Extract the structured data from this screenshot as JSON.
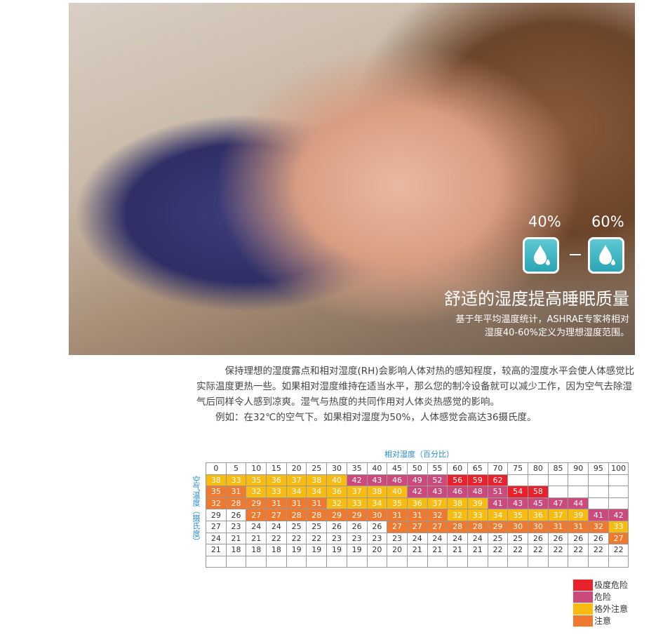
{
  "hero": {
    "badges": [
      "40%",
      "60%"
    ],
    "title": "舒适的湿度提高睡眠质量",
    "subtitle": [
      "基于年平均温度统计，ASHRAE专家将相对",
      "湿度40-60%定义为理想湿度范围。"
    ]
  },
  "body": {
    "paragraphs": [
      "保持理想的湿度露点和相对湿度(RH)会影响人体对热的感知程度，较高的湿度水平会使人体感觉比实际温度更热一些。如果相对湿度维持在适当水平，那么您的制冷设备就可以减少工作，因为空气去除湿气后同样令人感到凉爽。湿气与热度的共同作用对人体炎热感觉的影响。",
      "例如：在32℃的空气下。如果相对湿度为50%，人体感觉会高达36摄氏度。"
    ]
  },
  "table": {
    "caption": "相对湿度（百分比）",
    "row_label": "空气温度（摄氏度）",
    "header": [
      0,
      5,
      10,
      15,
      20,
      25,
      30,
      35,
      40,
      45,
      50,
      55,
      60,
      65,
      70,
      75,
      80,
      85,
      90,
      95,
      100
    ],
    "rows": [
      [
        38,
        33,
        35,
        36,
        37,
        38,
        40,
        42,
        43,
        46,
        49,
        52,
        56,
        59,
        62,
        null,
        null,
        null,
        null,
        null,
        null
      ],
      [
        35,
        31,
        32,
        33,
        34,
        34,
        36,
        37,
        38,
        40,
        42,
        43,
        46,
        48,
        51,
        54,
        58,
        null,
        null,
        null,
        null
      ],
      [
        32,
        28,
        29,
        31,
        31,
        31,
        32,
        33,
        34,
        35,
        36,
        37,
        38,
        39,
        41,
        43,
        45,
        47,
        44,
        null,
        null
      ],
      [
        29,
        26,
        27,
        27,
        28,
        28,
        29,
        29,
        30,
        31,
        31,
        32,
        32,
        33,
        34,
        35,
        36,
        37,
        39,
        41,
        42
      ],
      [
        27,
        23,
        24,
        24,
        25,
        25,
        26,
        26,
        26,
        27,
        27,
        27,
        28,
        28,
        29,
        30,
        30,
        31,
        31,
        32,
        33
      ],
      [
        24,
        21,
        21,
        22,
        22,
        22,
        23,
        23,
        23,
        23,
        24,
        24,
        24,
        24,
        25,
        25,
        26,
        26,
        26,
        26,
        27
      ],
      [
        21,
        18,
        18,
        18,
        19,
        19,
        19,
        19,
        20,
        20,
        21,
        21,
        21,
        21,
        22,
        22,
        22,
        22,
        22,
        22,
        22
      ],
      [
        null,
        null,
        null,
        null,
        null,
        null,
        null,
        null,
        null,
        null,
        null,
        null,
        null,
        null,
        null,
        null,
        null,
        null,
        null,
        null,
        null
      ]
    ],
    "colors": [
      [
        "#f7bb12",
        "#f7bb12",
        "#f7bb12",
        "#f7bb12",
        "#f7bb12",
        "#f7bb12",
        "#f7bb12",
        "#cc4a7c",
        "#cc4a7c",
        "#cc4a7c",
        "#cc4a7c",
        "#cc4a7c",
        "#e8212a",
        "#e8212a",
        "#e8212a",
        null,
        null,
        null,
        null,
        null,
        null
      ],
      [
        "#ef7a2f",
        "#ef7a2f",
        "#f7bb12",
        "#f7bb12",
        "#f7bb12",
        "#f7bb12",
        "#f7bb12",
        "#f7bb12",
        "#f7bb12",
        "#f7bb12",
        "#cc4a7c",
        "#cc4a7c",
        "#cc4a7c",
        "#cc4a7c",
        "#cc4a7c",
        "#e8212a",
        "#e8212a",
        null,
        null,
        null,
        null
      ],
      [
        "#ef7a2f",
        "#ef7a2f",
        "#ef7a2f",
        "#ef7a2f",
        "#ef7a2f",
        "#ef7a2f",
        "#f7bb12",
        "#f7bb12",
        "#f7bb12",
        "#f7bb12",
        "#f7bb12",
        "#f7bb12",
        "#f7bb12",
        "#f7bb12",
        "#cc4a7c",
        "#cc4a7c",
        "#cc4a7c",
        "#cc4a7c",
        "#cc4a7c",
        null,
        null
      ],
      [
        null,
        null,
        "#ef7a2f",
        "#ef7a2f",
        "#ef7a2f",
        "#ef7a2f",
        "#ef7a2f",
        "#ef7a2f",
        "#ef7a2f",
        "#ef7a2f",
        "#ef7a2f",
        "#ef7a2f",
        "#f7bb12",
        "#f7bb12",
        "#f7bb12",
        "#f7bb12",
        "#f7bb12",
        "#f7bb12",
        "#f7bb12",
        "#cc4a7c",
        "#cc4a7c"
      ],
      [
        null,
        null,
        null,
        null,
        null,
        null,
        null,
        null,
        null,
        "#ef7a2f",
        "#ef7a2f",
        "#ef7a2f",
        "#ef7a2f",
        "#ef7a2f",
        "#ef7a2f",
        "#ef7a2f",
        "#ef7a2f",
        "#ef7a2f",
        "#ef7a2f",
        "#ef7a2f",
        "#f7bb12"
      ],
      [
        null,
        null,
        null,
        null,
        null,
        null,
        null,
        null,
        null,
        null,
        null,
        null,
        null,
        null,
        null,
        null,
        null,
        null,
        null,
        null,
        "#ef7a2f"
      ],
      [
        null,
        null,
        null,
        null,
        null,
        null,
        null,
        null,
        null,
        null,
        null,
        null,
        null,
        null,
        null,
        null,
        null,
        null,
        null,
        null,
        null
      ],
      [
        null,
        null,
        null,
        null,
        null,
        null,
        null,
        null,
        null,
        null,
        null,
        null,
        null,
        null,
        null,
        null,
        null,
        null,
        null,
        null,
        null
      ]
    ]
  },
  "legend": [
    {
      "label": "极度危险",
      "color": "#e8212a"
    },
    {
      "label": "危险",
      "color": "#cc4a7c"
    },
    {
      "label": "格外注意",
      "color": "#f7bb12"
    },
    {
      "label": "注意",
      "color": "#ef7a2f"
    }
  ]
}
